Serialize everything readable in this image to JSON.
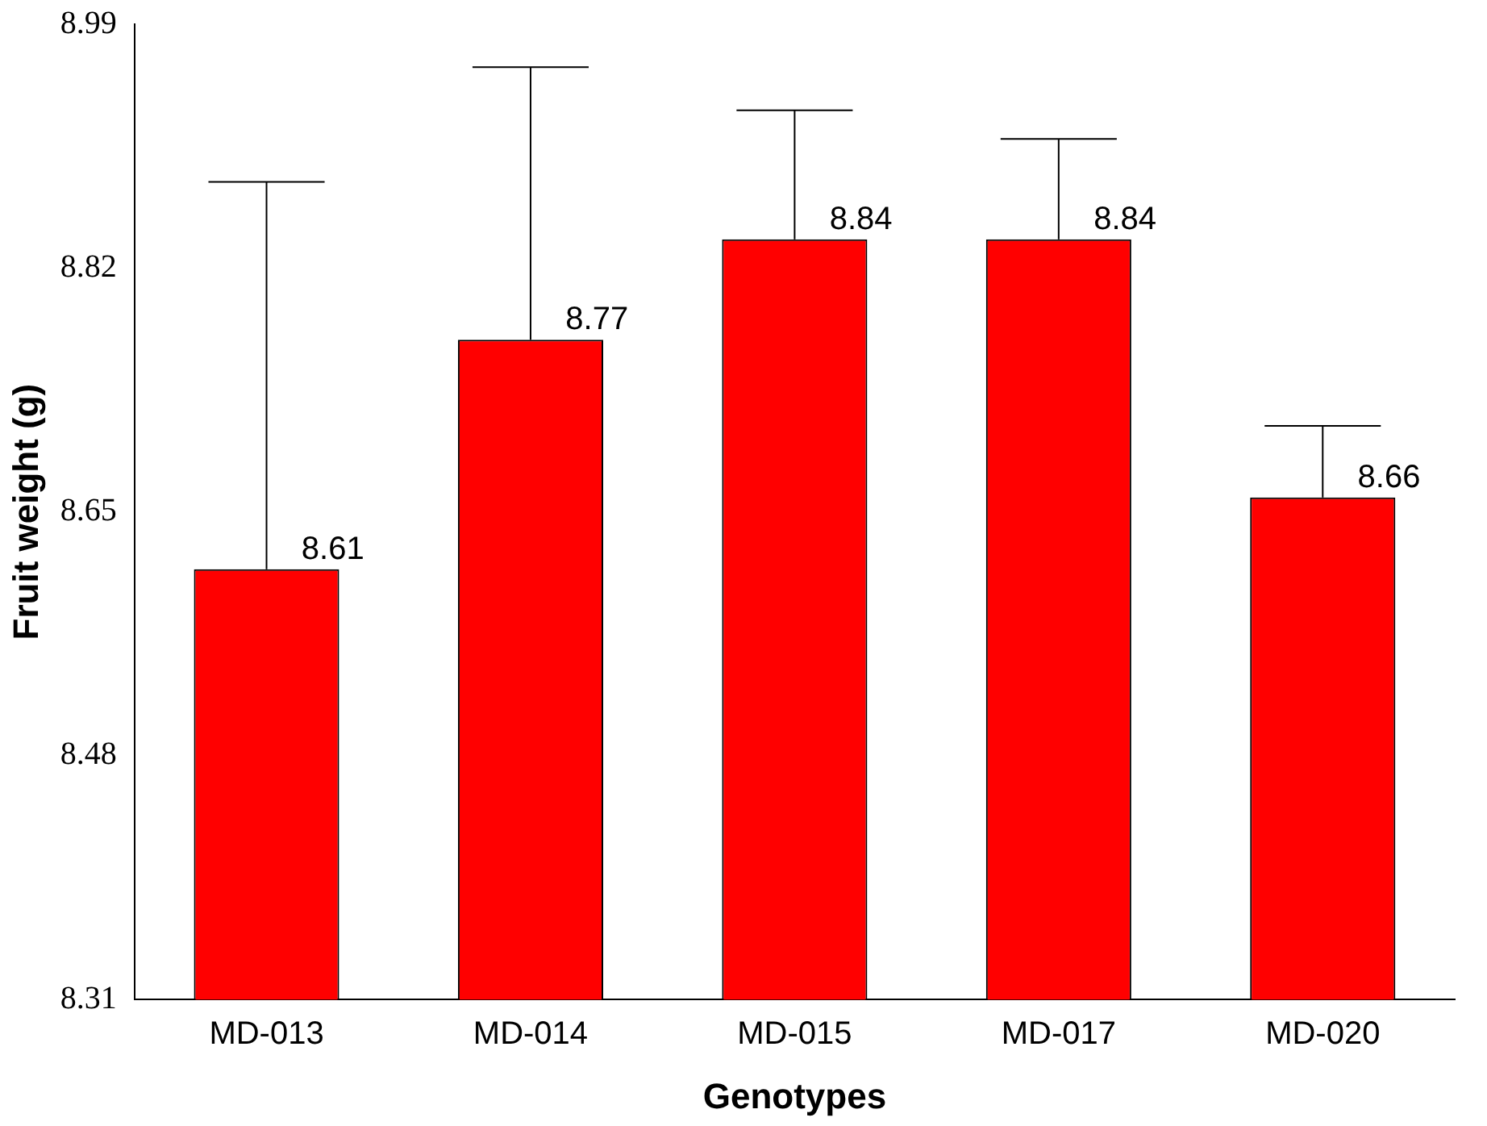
{
  "chart_data": {
    "type": "bar",
    "xlabel": "Genotypes",
    "ylabel": "Fruit weight (g)",
    "categories": [
      "MD-013",
      "MD-014",
      "MD-015",
      "MD-017",
      "MD-020"
    ],
    "values": [
      8.61,
      8.77,
      8.84,
      8.84,
      8.66
    ],
    "errors": [
      [
        8.61,
        8.88
      ],
      [
        8.77,
        8.96
      ],
      [
        8.84,
        8.93
      ],
      [
        8.84,
        8.91
      ],
      [
        8.66,
        8.71
      ]
    ],
    "color": "#ff0000",
    "ylim": [
      8.31,
      8.99
    ],
    "yticks": [
      8.31,
      8.48,
      8.65,
      8.82,
      8.99
    ],
    "grid": false,
    "legend": false,
    "data_labels": true
  }
}
